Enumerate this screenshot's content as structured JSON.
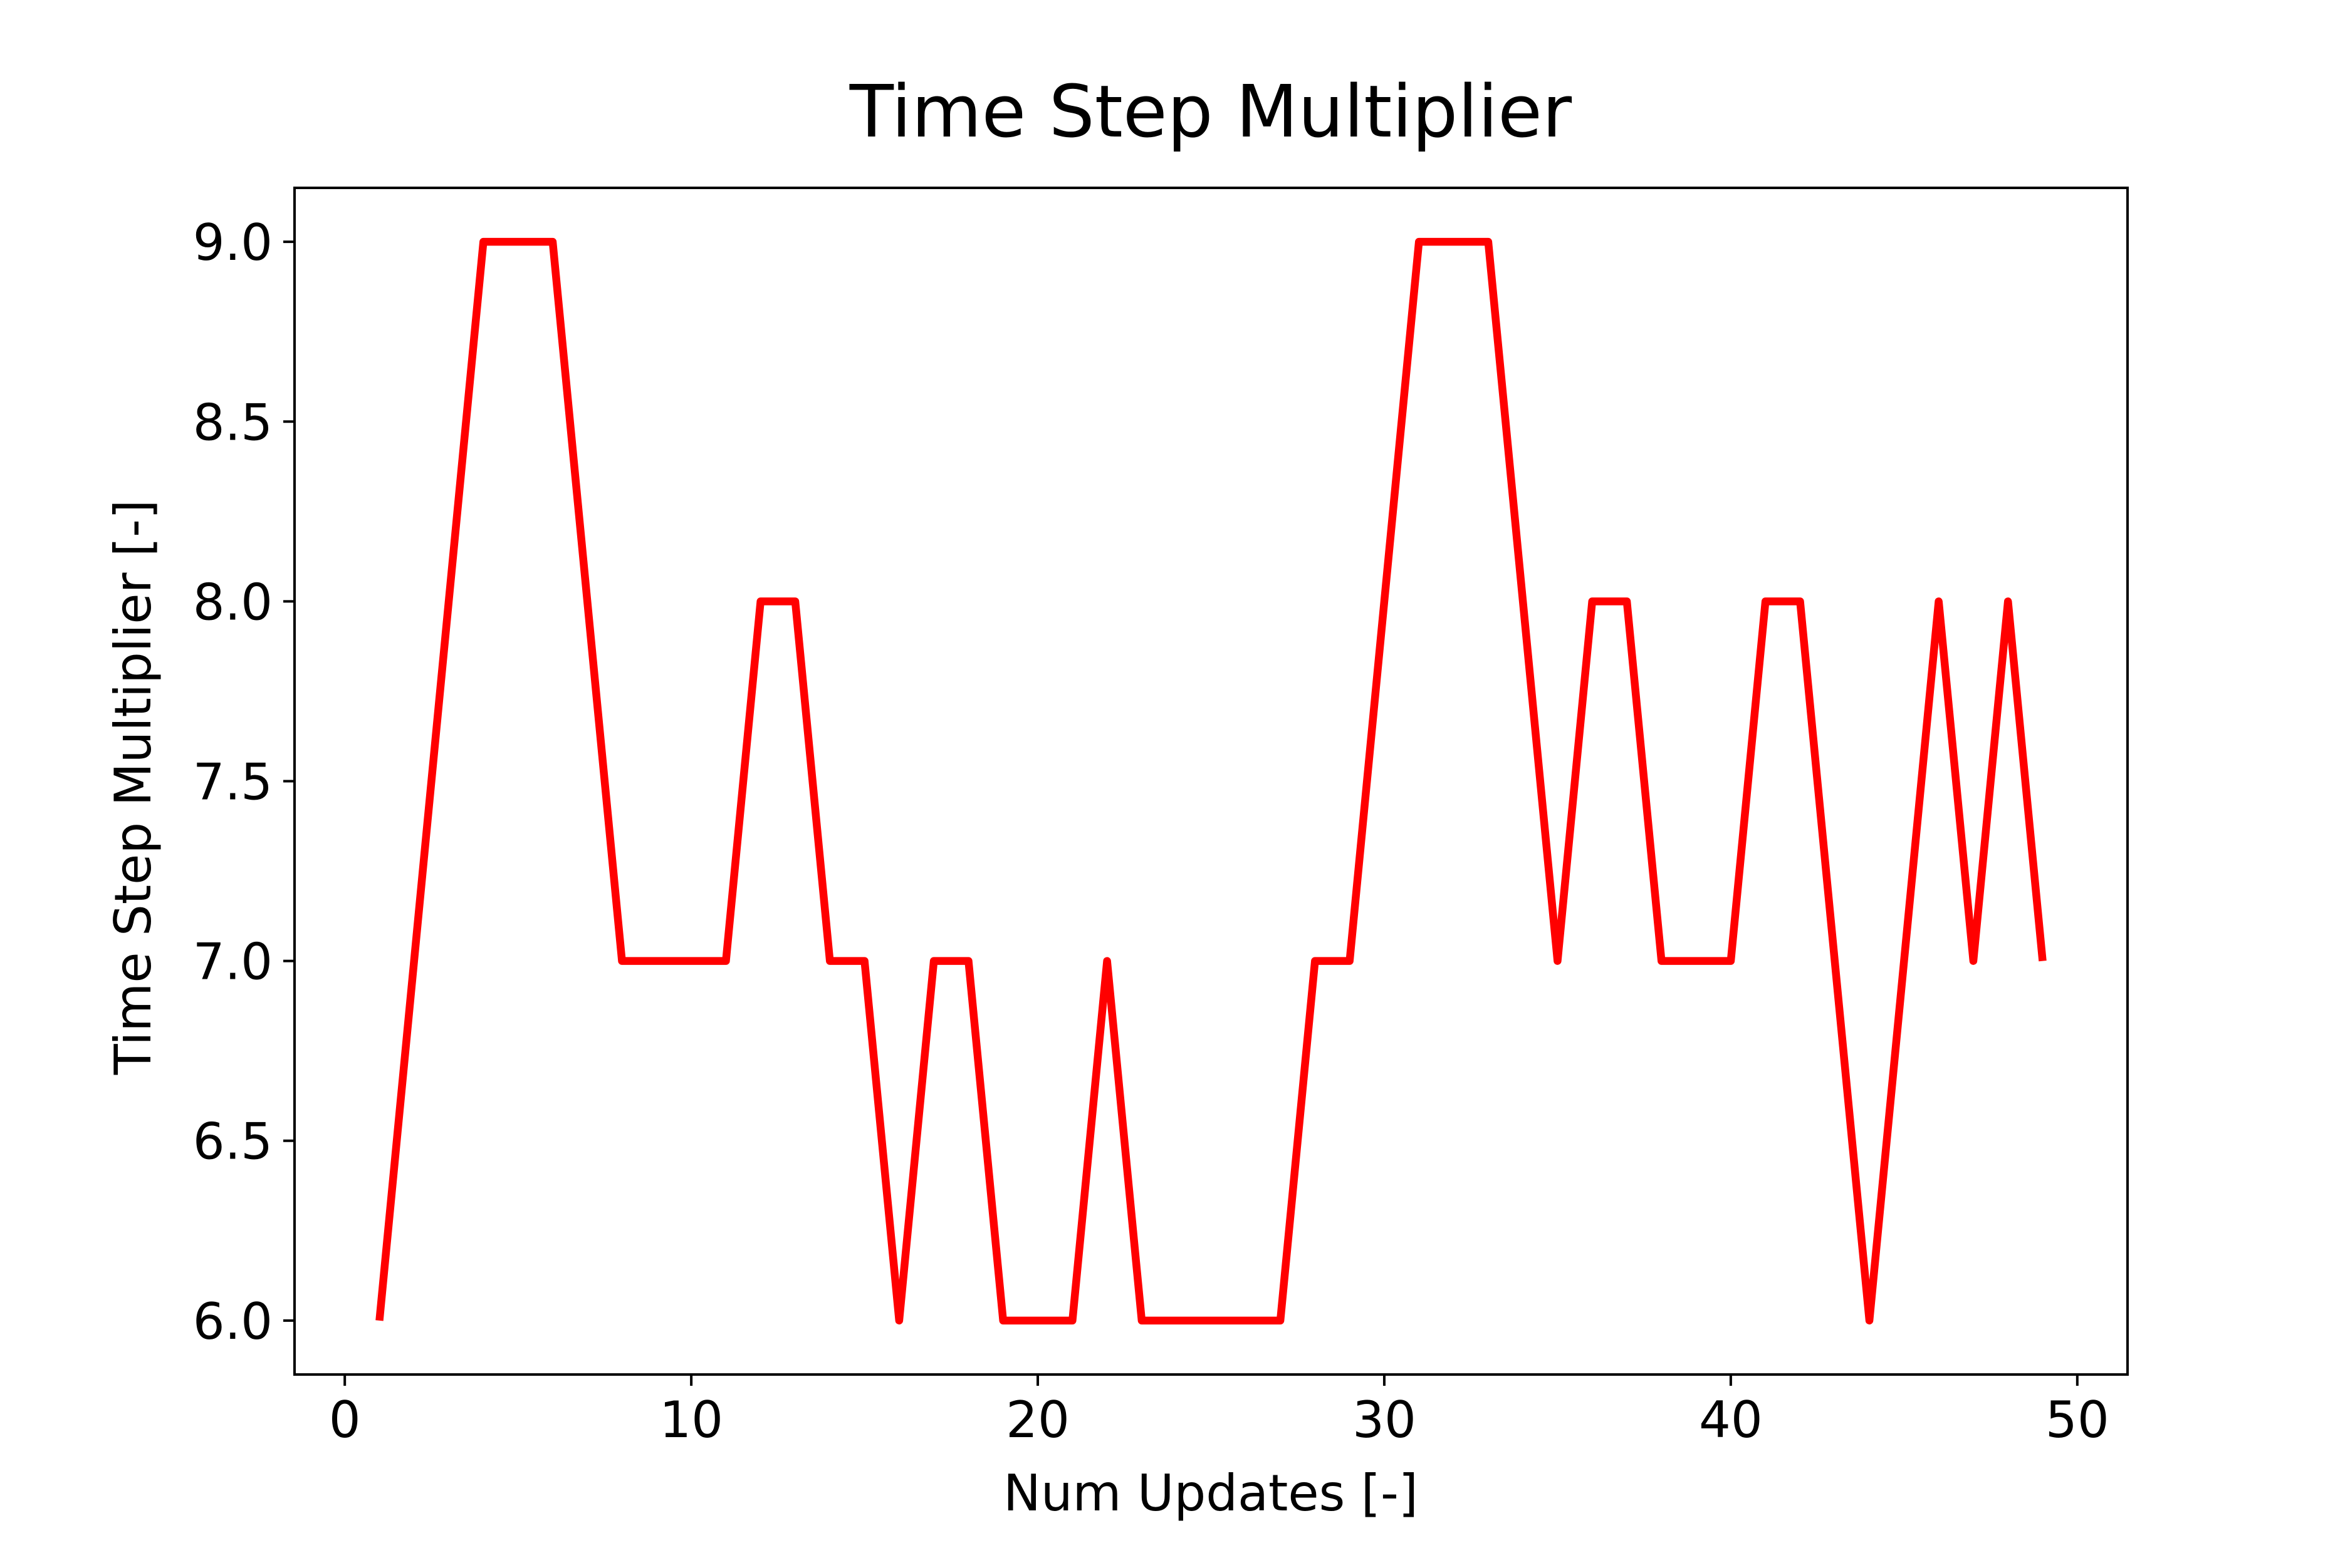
{
  "chart_data": {
    "type": "line",
    "title": "Time Step Multiplier",
    "xlabel": "Num Updates [-]",
    "ylabel": "Time Step Multiplier [-]",
    "xlim": [
      -1.45,
      51.45
    ],
    "ylim": [
      5.85,
      9.15
    ],
    "xticks": [
      0,
      10,
      20,
      30,
      40,
      50
    ],
    "xtick_labels": [
      "0",
      "10",
      "20",
      "30",
      "40",
      "50"
    ],
    "yticks": [
      6.0,
      6.5,
      7.0,
      7.5,
      8.0,
      8.5,
      9.0
    ],
    "ytick_labels": [
      "6.0",
      "6.5",
      "7.0",
      "7.5",
      "8.0",
      "8.5",
      "9.0"
    ],
    "grid": false,
    "series": [
      {
        "color": "#ff0000",
        "x": [
          1,
          2,
          3,
          4,
          5,
          6,
          7,
          8,
          9,
          10,
          11,
          12,
          13,
          14,
          15,
          16,
          17,
          18,
          19,
          20,
          21,
          22,
          23,
          24,
          25,
          26,
          27,
          28,
          29,
          30,
          31,
          32,
          33,
          34,
          35,
          36,
          37,
          38,
          39,
          40,
          41,
          42,
          43,
          44,
          45,
          46,
          47,
          48,
          49
        ],
        "y": [
          6,
          7,
          8,
          9,
          9,
          9,
          8,
          7,
          7,
          7,
          7,
          8,
          8,
          7,
          7,
          6,
          7,
          7,
          6,
          6,
          6,
          7,
          6,
          6,
          6,
          6,
          6,
          7,
          7,
          8,
          9,
          9,
          9,
          8,
          7,
          8,
          8,
          7,
          7,
          7,
          8,
          8,
          7,
          6,
          7,
          8,
          7,
          8,
          7
        ]
      }
    ]
  }
}
